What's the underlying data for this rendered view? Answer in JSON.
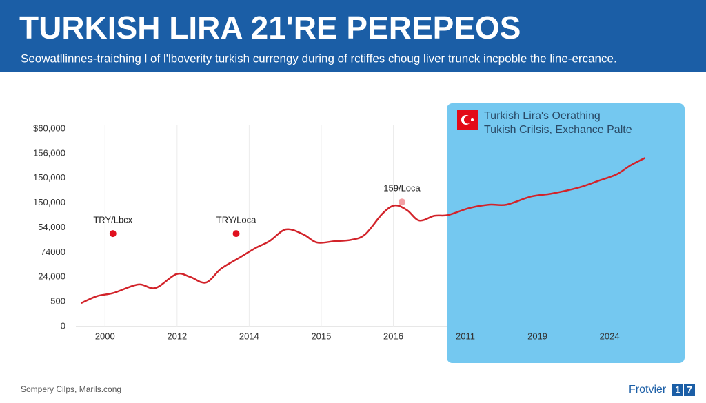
{
  "chart_data": {
    "type": "line",
    "title": "TURKISH LIRA 21'RE PEREPEOS",
    "subtitle": "Seowatllinnes-traiching l of l'lboverity turkish currengy during of rctiffes choug liver trunck incpoble the line-ercance.",
    "highlight_label": [
      "Turkish Lira's Oerathing",
      "Tukish Crilsis, Exchance Palte"
    ],
    "xlim": [
      -0.5,
      7.63
    ],
    "xticks": [
      {
        "value": 0,
        "label": "2000"
      },
      {
        "value": 1,
        "label": "2012"
      },
      {
        "value": 2,
        "label": "2014"
      },
      {
        "value": 3,
        "label": "2015"
      },
      {
        "value": 4,
        "label": "2016"
      },
      {
        "value": 5,
        "label": "2011"
      },
      {
        "value": 6,
        "label": "2019"
      },
      {
        "value": 7,
        "label": "2024"
      }
    ],
    "ylim": [
      0,
      8
    ],
    "yticks": [
      {
        "value": 0,
        "label": "0"
      },
      {
        "value": 1,
        "label": "500"
      },
      {
        "value": 2,
        "label": "24,000"
      },
      {
        "value": 3,
        "label": "74000"
      },
      {
        "value": 4,
        "label": "54,000"
      },
      {
        "value": 5,
        "label": "150,000"
      },
      {
        "value": 6,
        "label": "150,000"
      },
      {
        "value": 7,
        "label": "156,000"
      },
      {
        "value": 8,
        "label": "$60,000"
      }
    ],
    "grid": true,
    "series": [
      {
        "color": "#d2232a",
        "x": [
          -0.33,
          -0.11,
          0.12,
          0.46,
          0.7,
          0.99,
          1.18,
          1.4,
          1.61,
          1.85,
          2.09,
          2.28,
          2.51,
          2.75,
          2.94,
          3.18,
          3.42,
          3.61,
          3.85,
          4.02,
          4.19,
          4.36,
          4.57,
          4.76,
          5.05,
          5.33,
          5.57,
          5.91,
          6.2,
          6.58,
          6.86,
          7.1,
          7.29,
          7.49
        ],
        "values": [
          0.95,
          1.23,
          1.36,
          1.7,
          1.56,
          2.12,
          2.01,
          1.78,
          2.34,
          2.76,
          3.18,
          3.45,
          3.93,
          3.73,
          3.4,
          3.45,
          3.51,
          3.73,
          4.57,
          4.9,
          4.71,
          4.29,
          4.48,
          4.51,
          4.79,
          4.93,
          4.93,
          5.26,
          5.38,
          5.63,
          5.91,
          6.16,
          6.52,
          6.82
        ]
      }
    ],
    "annotations": [
      {
        "text": "TRY/Lbcx",
        "x": 0.11,
        "y": 3.76,
        "color": "#e0101e"
      },
      {
        "text": "TRY/Loca",
        "x": 1.82,
        "y": 3.76,
        "color": "#e0101e"
      },
      {
        "text": "159/Loca",
        "x": 4.12,
        "y": 5.04,
        "color": "#f2a0a4"
      }
    ]
  },
  "footer": {
    "source": "Sompery Cilps, Marils.cong",
    "brand": "Frotvier",
    "badge": [
      "1",
      "7"
    ]
  }
}
